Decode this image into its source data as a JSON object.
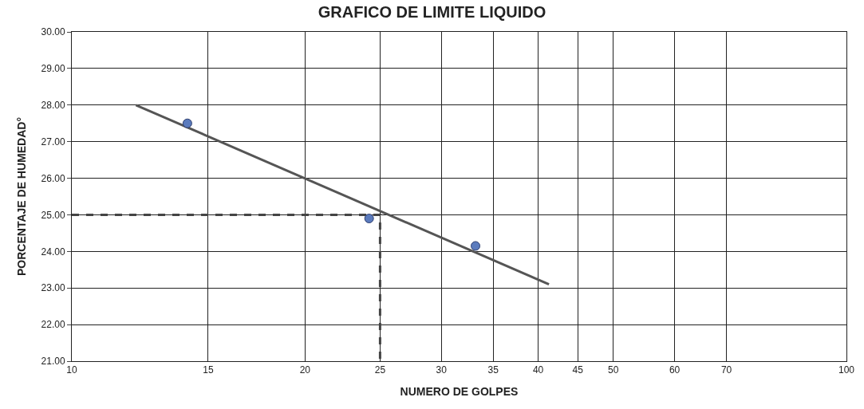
{
  "chart_data": {
    "type": "scatter",
    "title": "GRAFICO DE LIMITE LIQUIDO",
    "xlabel": "NUMERO DE GOLPES",
    "ylabel": "PORCENTAJE DE HUMEDAD°",
    "log": "x",
    "grid": true,
    "xlim": [
      10,
      100
    ],
    "xticks": [
      10,
      15,
      20,
      25,
      30,
      35,
      40,
      45,
      50,
      60,
      70,
      100
    ],
    "ylim": [
      21,
      30
    ],
    "yticks": [
      {
        "value": 21,
        "label": "21.00"
      },
      {
        "value": 22,
        "label": "22.00"
      },
      {
        "value": 23,
        "label": "23.00"
      },
      {
        "value": 24,
        "label": "24.00"
      },
      {
        "value": 25,
        "label": "25.00"
      },
      {
        "value": 26,
        "label": "26.00"
      },
      {
        "value": 27,
        "label": "27.00"
      },
      {
        "value": 28,
        "label": "28.00"
      },
      {
        "value": 29,
        "label": "29.00"
      },
      {
        "value": 30,
        "label": "30.00"
      }
    ],
    "series": [
      {
        "type": "line",
        "color": "#555555",
        "line_style": "solid",
        "x": [
          12.1,
          41.3
        ],
        "values": [
          28.0,
          23.1
        ]
      },
      {
        "type": "line",
        "color": "#444444",
        "line_style": "dashed",
        "x": [
          10,
          25,
          25
        ],
        "values": [
          25,
          25,
          21
        ]
      },
      {
        "color": "#5b7bbd",
        "marker": "circle",
        "x": [
          14.1,
          24.2,
          33.2
        ],
        "values": [
          27.5,
          24.9,
          24.15
        ]
      }
    ]
  }
}
